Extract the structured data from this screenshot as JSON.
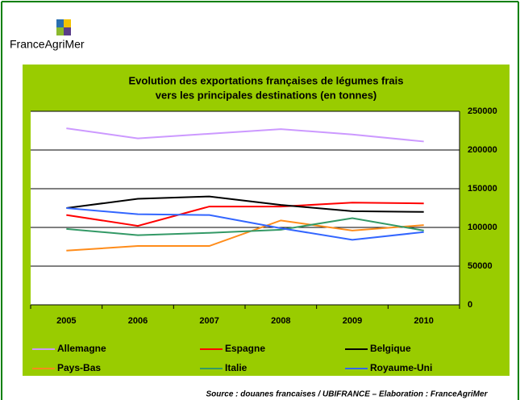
{
  "logo": {
    "text": "FranceAgriMer"
  },
  "chart_data": {
    "type": "line",
    "title": [
      "Evolution des exportations françaises de légumes frais",
      "vers les principales destinations (en tonnes)"
    ],
    "categories": [
      "2005",
      "2006",
      "2007",
      "2008",
      "2009",
      "2010"
    ],
    "series": [
      {
        "name": "Allemagne",
        "color": "#cc99ff",
        "values": [
          228000,
          215000,
          221000,
          227000,
          220000,
          211000
        ]
      },
      {
        "name": "Espagne",
        "color": "#ff0000",
        "values": [
          116000,
          102000,
          127000,
          127000,
          132000,
          131000
        ]
      },
      {
        "name": "Belgique",
        "color": "#000000",
        "values": [
          125000,
          137000,
          140000,
          129000,
          121000,
          120000
        ]
      },
      {
        "name": "Pays-Bas",
        "color": "#ff8c1a",
        "values": [
          70000,
          76000,
          76000,
          109000,
          96000,
          103000
        ]
      },
      {
        "name": "Italie",
        "color": "#339966",
        "values": [
          98000,
          90000,
          93000,
          97000,
          112000,
          96000
        ]
      },
      {
        "name": "Royaume-Uni",
        "color": "#3366ff",
        "values": [
          125000,
          117000,
          116000,
          99000,
          84000,
          94000
        ]
      }
    ],
    "ylim": [
      0,
      250000
    ],
    "yticks": [
      0,
      50000,
      100000,
      150000,
      200000,
      250000
    ],
    "grid": true,
    "y_axis_side": "right",
    "background": "#99cc00",
    "source": "Source : douanes francaises / UBIFRANCE – Elaboration : FranceAgriMer"
  }
}
